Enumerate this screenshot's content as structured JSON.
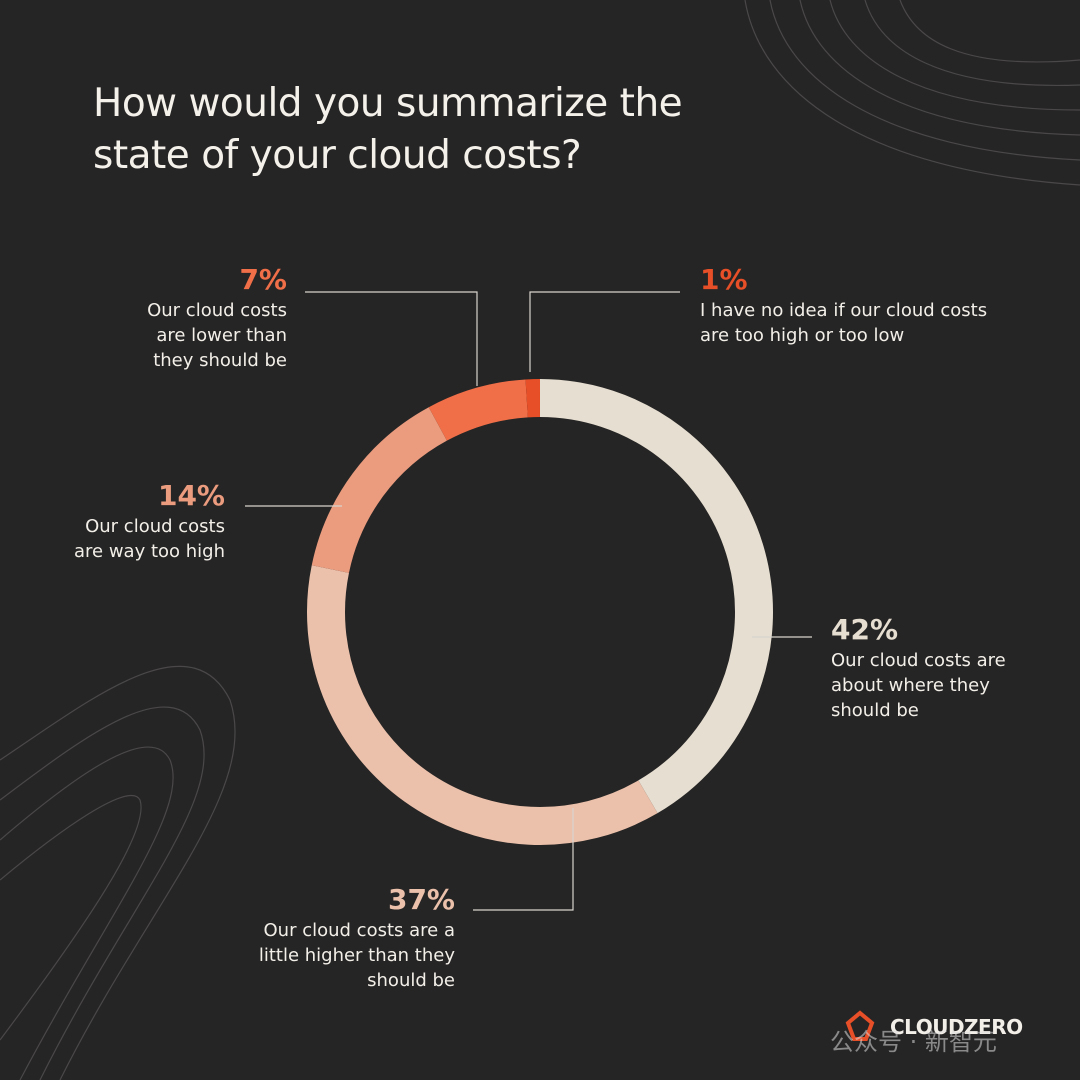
{
  "chart_data": {
    "type": "donut",
    "title": "How would you summarize the state of your cloud costs?",
    "categories": [
      "Our cloud costs are about where they should be",
      "Our cloud costs are a little higher than they should be",
      "Our cloud costs are way too high",
      "Our cloud costs are lower than they should be",
      "I have no idea if our cloud costs are too high or too low"
    ],
    "values": [
      42,
      37,
      14,
      7,
      1
    ],
    "value_labels": [
      "42%",
      "37%",
      "14%",
      "7%",
      "1%"
    ],
    "colors": [
      "#e6ded0",
      "#ecc1ab",
      "#eb9c7f",
      "#f06f48",
      "#e64f27"
    ]
  },
  "brand": "CLOUDZERO",
  "watermark": "公众号 · 新智元"
}
